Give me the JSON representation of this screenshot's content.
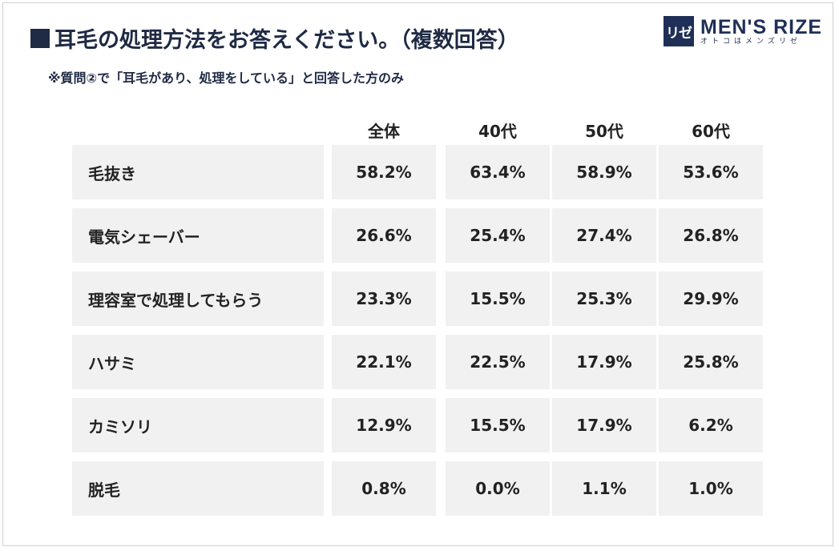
{
  "header": {
    "title": "耳毛の処理方法をお答えください。（複数回答）",
    "subtitle": "※質問②で「耳毛があり、処理をしている」と回答した方のみ"
  },
  "logo": {
    "mark": "リゼ",
    "name": "MEN'S RIZE",
    "tagline": "オトコはメンズリゼ",
    "color": "#1f2f57"
  },
  "colors": {
    "title": "#1f2a44",
    "cell_bg": "#f1f1f1"
  },
  "chart_data": {
    "type": "table",
    "title": "耳毛の処理方法をお答えください。（複数回答）",
    "columns": [
      "全体",
      "40代",
      "50代",
      "60代"
    ],
    "rows": [
      {
        "label": "毛抜き",
        "values": [
          "58.2%",
          "63.4%",
          "58.9%",
          "53.6%"
        ]
      },
      {
        "label": "電気シェーバー",
        "values": [
          "26.6%",
          "25.4%",
          "27.4%",
          "26.8%"
        ]
      },
      {
        "label": "理容室で処理してもらう",
        "values": [
          "23.3%",
          "15.5%",
          "25.3%",
          "29.9%"
        ]
      },
      {
        "label": "ハサミ",
        "values": [
          "22.1%",
          "22.5%",
          "17.9%",
          "25.8%"
        ]
      },
      {
        "label": "カミソリ",
        "values": [
          "12.9%",
          "15.5%",
          "17.9%",
          "6.2%"
        ]
      },
      {
        "label": "脱毛",
        "values": [
          "0.8%",
          "0.0%",
          "1.1%",
          "1.0%"
        ]
      }
    ]
  }
}
